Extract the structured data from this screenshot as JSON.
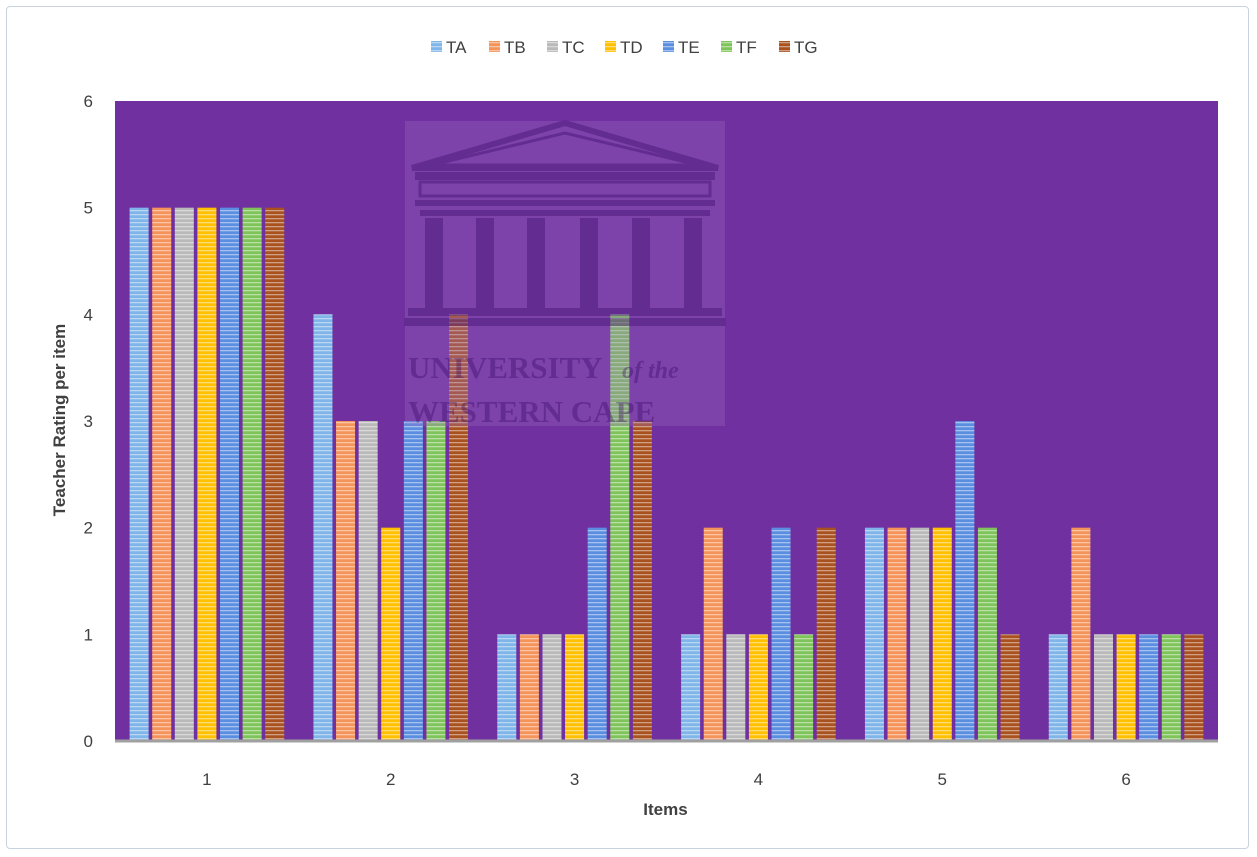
{
  "chart_data": {
    "type": "bar",
    "title": "",
    "xlabel": "Items",
    "ylabel": "Teacher Rating per item",
    "categories": [
      "1",
      "2",
      "3",
      "4",
      "5",
      "6"
    ],
    "ylim": [
      0,
      6
    ],
    "yticks": [
      "0",
      "1",
      "2",
      "3",
      "4",
      "5",
      "6"
    ],
    "legend_position": "top",
    "plot_background": "#7030a0",
    "series": [
      {
        "name": "TA",
        "color": "#7fb5e8",
        "values": [
          5,
          4,
          1,
          1,
          2,
          1
        ]
      },
      {
        "name": "TB",
        "color": "#f4945a",
        "values": [
          5,
          3,
          1,
          2,
          2,
          2
        ]
      },
      {
        "name": "TC",
        "color": "#b9b9b9",
        "values": [
          5,
          3,
          1,
          1,
          2,
          1
        ]
      },
      {
        "name": "TD",
        "color": "#ffc000",
        "values": [
          5,
          2,
          1,
          1,
          2,
          1
        ]
      },
      {
        "name": "TE",
        "color": "#5b8ee0",
        "values": [
          5,
          3,
          2,
          2,
          3,
          1
        ]
      },
      {
        "name": "TF",
        "color": "#7fc45a",
        "values": [
          5,
          3,
          4,
          1,
          2,
          1
        ]
      },
      {
        "name": "TG",
        "color": "#a9521f",
        "values": [
          5,
          4,
          3,
          2,
          1,
          1
        ]
      }
    ]
  },
  "watermark": {
    "line1": "UNIVERSITY",
    "line1_suffix": "of the",
    "line2": "WESTERN CAPE"
  }
}
